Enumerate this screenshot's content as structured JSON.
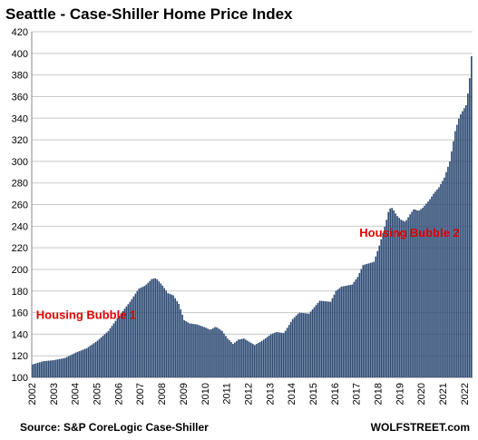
{
  "chart_data": {
    "type": "bar",
    "title": "Seattle - Case-Shiller Home Price Index",
    "ylim": [
      100,
      420
    ],
    "yticks": [
      100,
      120,
      140,
      160,
      180,
      200,
      220,
      240,
      260,
      280,
      300,
      320,
      340,
      360,
      380,
      400,
      420
    ],
    "xticks": [
      "2002",
      "2003",
      "2004",
      "2005",
      "2006",
      "2007",
      "2008",
      "2009",
      "2010",
      "2011",
      "2012",
      "2013",
      "2014",
      "2015",
      "2016",
      "2017",
      "2018",
      "2019",
      "2020",
      "2021",
      "2022"
    ],
    "grid": true,
    "bar_color": "#2d4a74",
    "annotations": [
      {
        "text": "Housing Bubble 1",
        "x": 2002.2,
        "y": 154
      },
      {
        "text": "Housing Bubble 2",
        "x": 2017.15,
        "y": 230
      }
    ],
    "anchors": [
      [
        2002.0,
        112
      ],
      [
        2002.5,
        115
      ],
      [
        2003.0,
        116
      ],
      [
        2003.5,
        118
      ],
      [
        2004.0,
        123
      ],
      [
        2004.5,
        127
      ],
      [
        2005.0,
        134
      ],
      [
        2005.5,
        143
      ],
      [
        2006.0,
        157
      ],
      [
        2006.5,
        170
      ],
      [
        2006.9,
        182
      ],
      [
        2007.2,
        185
      ],
      [
        2007.5,
        191
      ],
      [
        2007.7,
        192
      ],
      [
        2008.0,
        185
      ],
      [
        2008.25,
        178
      ],
      [
        2008.5,
        176
      ],
      [
        2008.75,
        168
      ],
      [
        2009.0,
        153
      ],
      [
        2009.25,
        150
      ],
      [
        2009.6,
        149
      ],
      [
        2010.0,
        146
      ],
      [
        2010.2,
        144
      ],
      [
        2010.45,
        147
      ],
      [
        2010.75,
        143
      ],
      [
        2011.0,
        136
      ],
      [
        2011.25,
        131
      ],
      [
        2011.5,
        135
      ],
      [
        2011.75,
        136
      ],
      [
        2012.0,
        133
      ],
      [
        2012.25,
        130
      ],
      [
        2012.6,
        134
      ],
      [
        2013.0,
        140
      ],
      [
        2013.25,
        142
      ],
      [
        2013.6,
        141
      ],
      [
        2014.0,
        154
      ],
      [
        2014.3,
        160
      ],
      [
        2014.75,
        159
      ],
      [
        2015.0,
        165
      ],
      [
        2015.25,
        171
      ],
      [
        2015.75,
        170
      ],
      [
        2016.0,
        180
      ],
      [
        2016.25,
        184
      ],
      [
        2016.75,
        186
      ],
      [
        2017.0,
        193
      ],
      [
        2017.25,
        204
      ],
      [
        2017.75,
        207
      ],
      [
        2018.0,
        222
      ],
      [
        2018.3,
        243
      ],
      [
        2018.45,
        256
      ],
      [
        2018.6,
        257
      ],
      [
        2018.8,
        250
      ],
      [
        2019.0,
        246
      ],
      [
        2019.2,
        244
      ],
      [
        2019.45,
        252
      ],
      [
        2019.6,
        256
      ],
      [
        2019.8,
        254
      ],
      [
        2020.0,
        257
      ],
      [
        2020.3,
        264
      ],
      [
        2020.5,
        270
      ],
      [
        2020.75,
        276
      ],
      [
        2021.0,
        285
      ],
      [
        2021.25,
        300
      ],
      [
        2021.5,
        328
      ],
      [
        2021.7,
        342
      ],
      [
        2021.85,
        347
      ],
      [
        2022.0,
        352
      ],
      [
        2022.1,
        365
      ],
      [
        2022.2,
        383
      ],
      [
        2022.27,
        403
      ]
    ],
    "source": "Source: S&P CoreLogic Case-Shiller",
    "brand": "WOLFSTREET.com"
  }
}
